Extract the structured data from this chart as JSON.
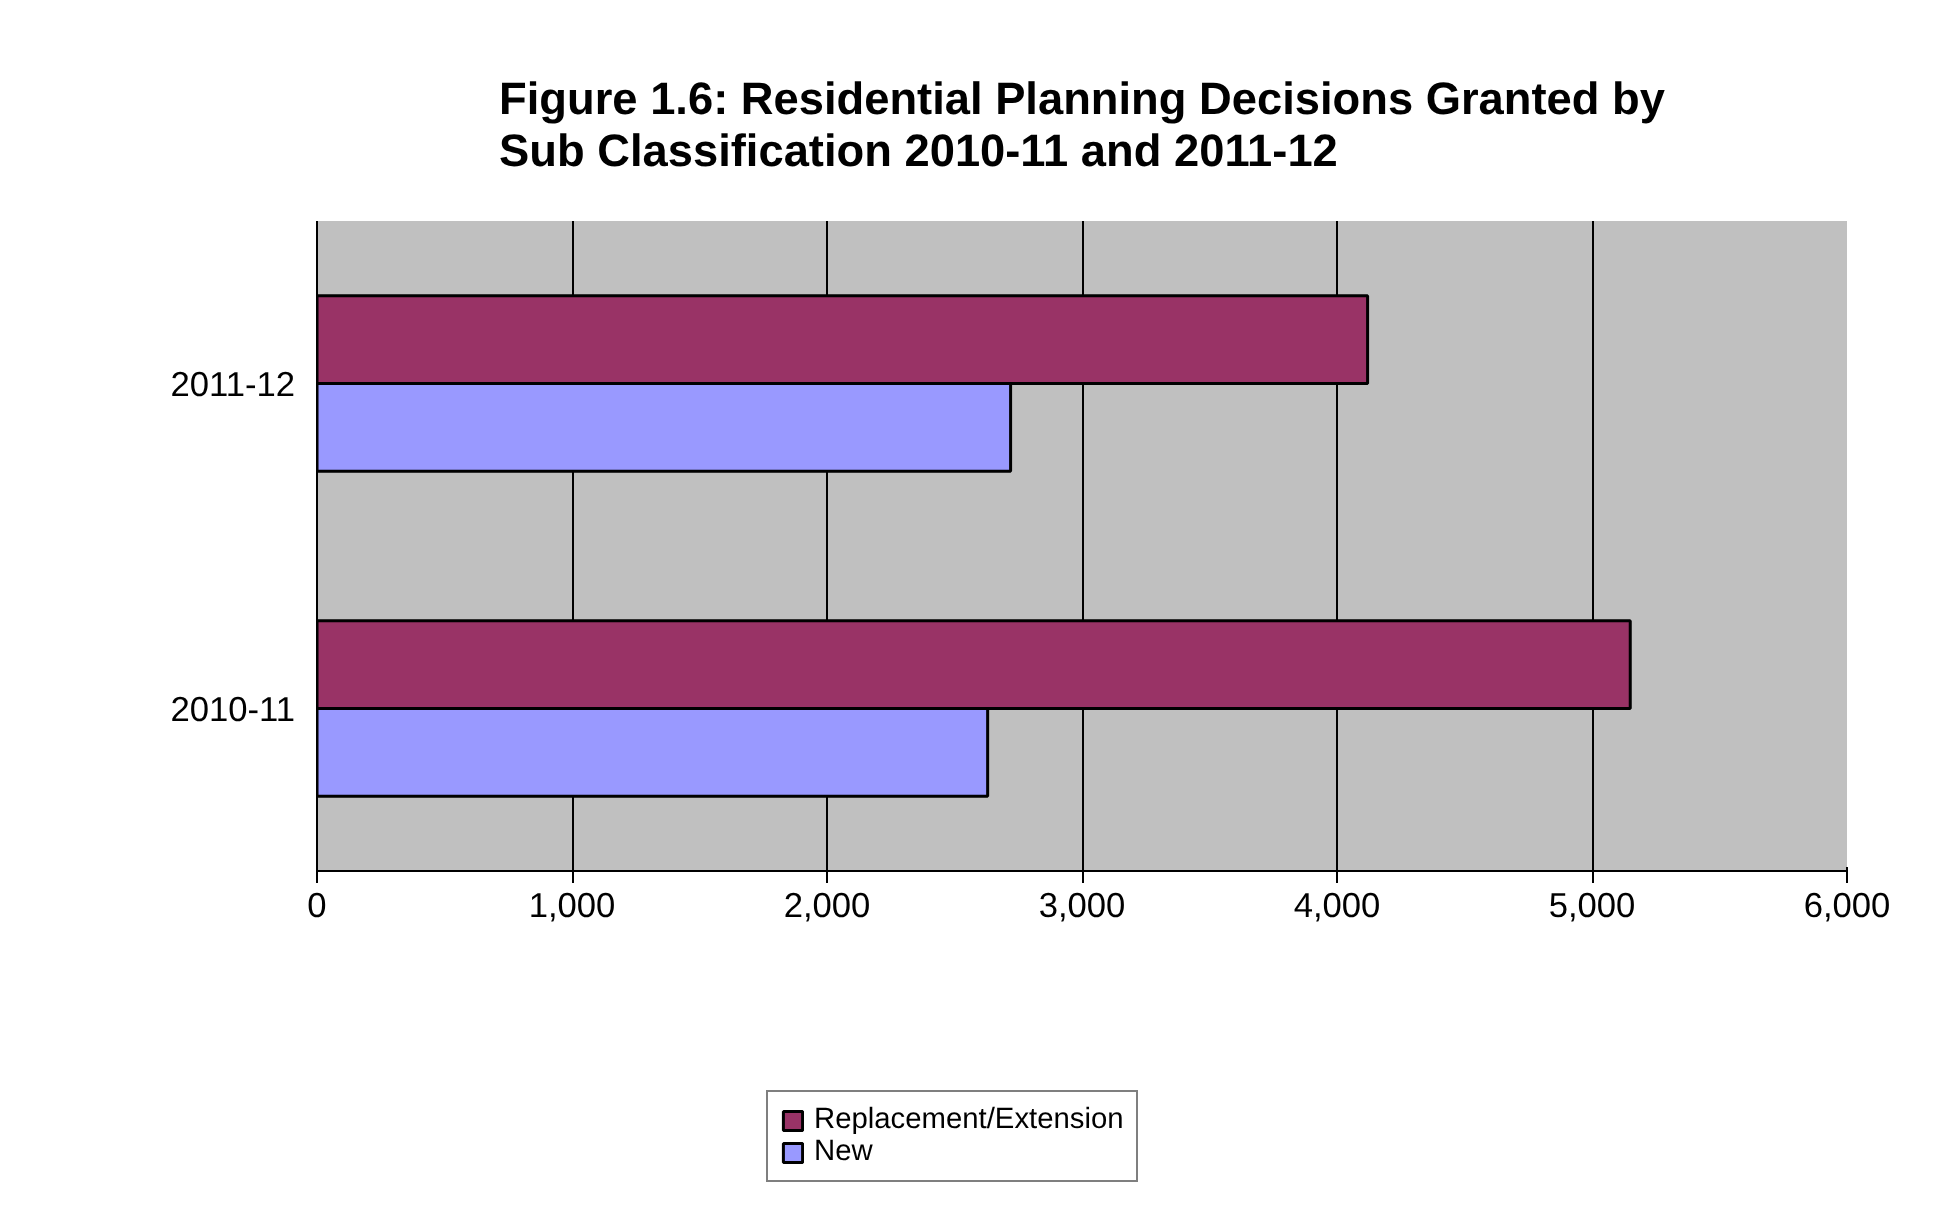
{
  "chart_data": {
    "type": "bar",
    "orientation": "horizontal",
    "title": "Figure 1.6: Residential Planning Decisions Granted by\nSub Classification 2010-11 and 2011-12",
    "categories": [
      "2011-12",
      "2010-11"
    ],
    "series": [
      {
        "name": "Replacement/Extension",
        "color": "#993366",
        "values": [
          4120,
          5150
        ]
      },
      {
        "name": "New",
        "color": "#9999ff",
        "values": [
          2720,
          2630
        ]
      }
    ],
    "xlim": [
      0,
      6000
    ],
    "xticks": [
      {
        "value": 0,
        "label": "0"
      },
      {
        "value": 1000,
        "label": "1,000"
      },
      {
        "value": 2000,
        "label": "2,000"
      },
      {
        "value": 3000,
        "label": "3,000"
      },
      {
        "value": 4000,
        "label": "4,000"
      },
      {
        "value": 5000,
        "label": "5,000"
      },
      {
        "value": 6000,
        "label": "6,000"
      }
    ],
    "grid": "x",
    "legend": "bottom"
  }
}
